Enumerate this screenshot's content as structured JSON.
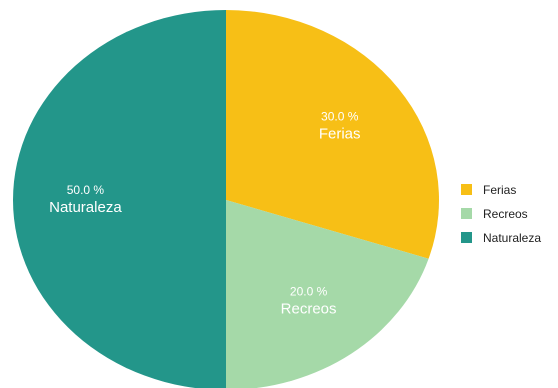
{
  "chart_data": {
    "type": "pie",
    "title": "",
    "categories": [
      "Ferias",
      "Recreos",
      "Naturaleza"
    ],
    "values": [
      30.0,
      20.0,
      50.0
    ],
    "value_labels": [
      "30.0 %",
      "20.0 %",
      "50.0 %"
    ],
    "colors": [
      "#F7BF16",
      "#A5D9A8",
      "#23968A"
    ],
    "start_angle": "12 o'clock",
    "direction": "clockwise",
    "legend": {
      "placement": "right",
      "entries": [
        "Ferias",
        "Recreos",
        "Naturaleza"
      ]
    }
  }
}
